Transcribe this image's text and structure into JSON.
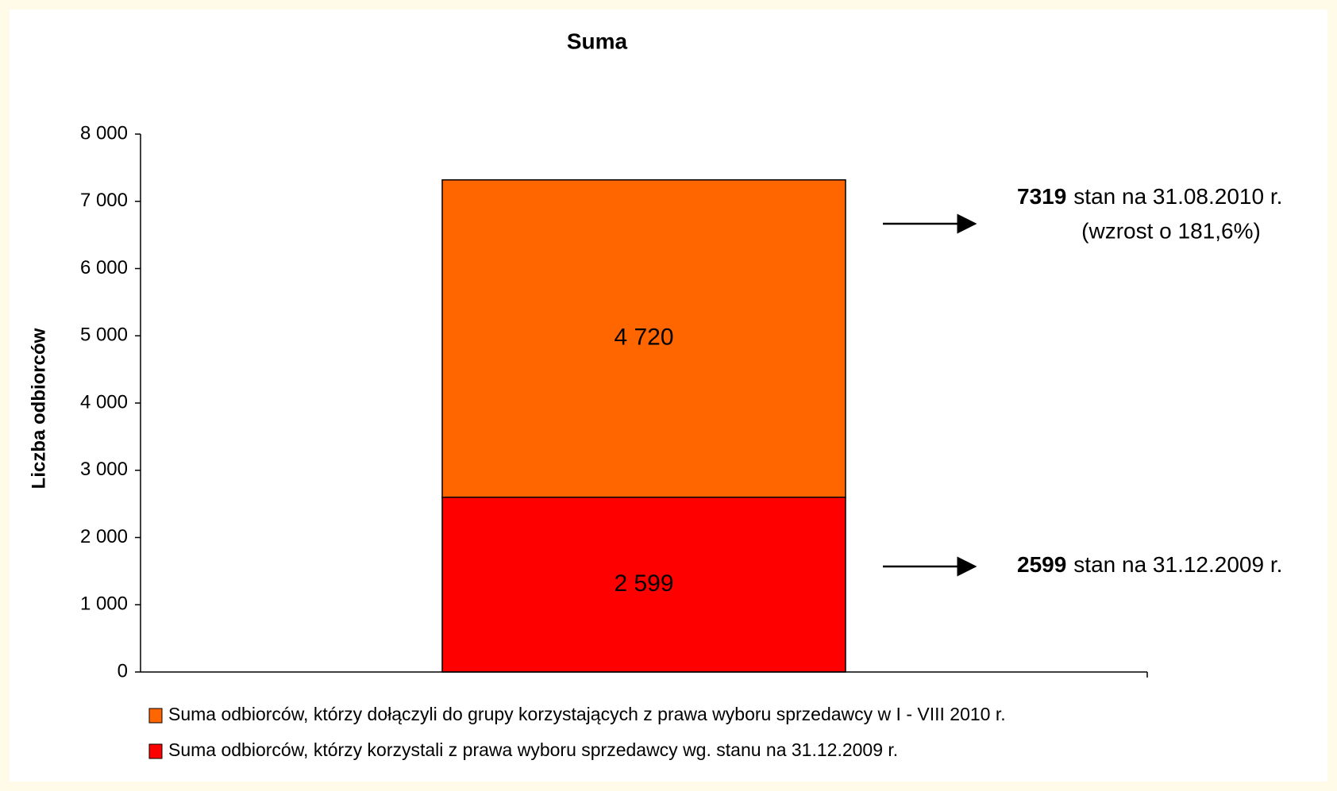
{
  "chart_data": {
    "type": "stacked_bar",
    "title": "Suma",
    "y_label": "Liczba odbiorców",
    "categories": [
      null
    ],
    "series": [
      {
        "name": "Suma odbiorców, którzy korzystali z prawa wyboru sprzedawcy wg. stanu na 31.12.2009 r.",
        "color": "#ff0000",
        "values": [
          2599
        ],
        "value_labels": [
          "2 599"
        ]
      },
      {
        "name": "Suma odbiorców, którzy dołączyli do grupy korzystających z prawa wyboru sprzedawcy w I - VIII 2010 r.",
        "color": "#ff6600",
        "values": [
          4720
        ],
        "value_labels": [
          "4 720"
        ]
      }
    ],
    "legend_order": [
      1,
      0
    ],
    "ylim": [
      0,
      8000
    ],
    "yticks": [
      0,
      {
        "value": 1000,
        "label": "1 000"
      },
      {
        "value": 2000,
        "label": "2 000"
      },
      {
        "value": 3000,
        "label": "3 000"
      },
      {
        "value": 4000,
        "label": "4 000"
      },
      {
        "value": 5000,
        "label": "5 000"
      },
      {
        "value": 6000,
        "label": "6 000"
      },
      {
        "value": 7000,
        "label": "7 000"
      },
      {
        "value": 8000,
        "label": "8 000"
      }
    ],
    "annotations": [
      {
        "value": 7319,
        "text": "stan na 31.08.2010 r.",
        "note": "(wzrost o 181,6%)"
      },
      {
        "value": 2599,
        "text": "stan na 31.12.2009 r."
      }
    ]
  }
}
